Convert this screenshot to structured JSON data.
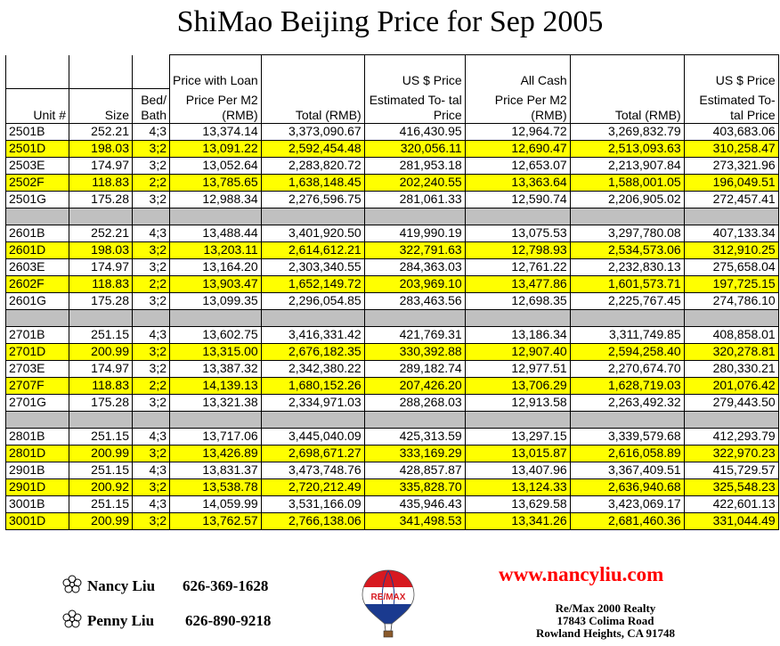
{
  "title": "ShiMao Beijing Price for Sep 2005",
  "header_top": {
    "loan": "Price with Loan",
    "usd1": "US $ Price",
    "cash": "All Cash",
    "usd2": "US $ Price"
  },
  "header": {
    "unit": "Unit #",
    "size": "Size",
    "bed": "Bed/ Bath",
    "ppm2": "Price Per M2 (RMB)",
    "total": "Total (RMB)",
    "est": "Estimated To- tal Price",
    "ppm2_cash": "Price Per M2 (RMB)",
    "total_cash": "Total (RMB)",
    "est_cash": "Estimated To- tal Price"
  },
  "rows": [
    {
      "unit": "2501B",
      "size": "252.21",
      "bed": "4;3",
      "ppm2": "13,374.14",
      "total": "3,373,090.67",
      "usd": "416,430.95",
      "cppm2": "12,964.72",
      "ctotal": "3,269,832.79",
      "cusd": "403,683.06",
      "hl": false
    },
    {
      "unit": "2501D",
      "size": "198.03",
      "bed": "3;2",
      "ppm2": "13,091.22",
      "total": "2,592,454.48",
      "usd": "320,056.11",
      "cppm2": "12,690.47",
      "ctotal": "2,513,093.63",
      "cusd": "310,258.47",
      "hl": true
    },
    {
      "unit": "2503E",
      "size": "174.97",
      "bed": "3;2",
      "ppm2": "13,052.64",
      "total": "2,283,820.72",
      "usd": "281,953.18",
      "cppm2": "12,653.07",
      "ctotal": "2,213,907.84",
      "cusd": "273,321.96",
      "hl": false
    },
    {
      "unit": "2502F",
      "size": "118.83",
      "bed": "2;2",
      "ppm2": "13,785.65",
      "total": "1,638,148.45",
      "usd": "202,240.55",
      "cppm2": "13,363.64",
      "ctotal": "1,588,001.05",
      "cusd": "196,049.51",
      "hl": true
    },
    {
      "unit": "2501G",
      "size": "175.28",
      "bed": "3;2",
      "ppm2": "12,988.34",
      "total": "2,276,596.75",
      "usd": "281,061.33",
      "cppm2": "12,590.74",
      "ctotal": "2,206,905.02",
      "cusd": "272,457.41",
      "hl": false
    },
    {
      "gap": true
    },
    {
      "unit": "2601B",
      "size": "252.21",
      "bed": "4;3",
      "ppm2": "13,488.44",
      "total": "3,401,920.50",
      "usd": "419,990.19",
      "cppm2": "13,075.53",
      "ctotal": "3,297,780.08",
      "cusd": "407,133.34",
      "hl": false
    },
    {
      "unit": "2601D",
      "size": "198.03",
      "bed": "3;2",
      "ppm2": "13,203.11",
      "total": "2,614,612.21",
      "usd": "322,791.63",
      "cppm2": "12,798.93",
      "ctotal": "2,534,573.06",
      "cusd": "312,910.25",
      "hl": true
    },
    {
      "unit": "2603E",
      "size": "174.97",
      "bed": "3;2",
      "ppm2": "13,164.20",
      "total": "2,303,340.55",
      "usd": "284,363.03",
      "cppm2": "12,761.22",
      "ctotal": "2,232,830.13",
      "cusd": "275,658.04",
      "hl": false
    },
    {
      "unit": "2602F",
      "size": "118.83",
      "bed": "2;2",
      "ppm2": "13,903.47",
      "total": "1,652,149.72",
      "usd": "203,969.10",
      "cppm2": "13,477.86",
      "ctotal": "1,601,573.71",
      "cusd": "197,725.15",
      "hl": true
    },
    {
      "unit": "2601G",
      "size": "175.28",
      "bed": "3;2",
      "ppm2": "13,099.35",
      "total": "2,296,054.85",
      "usd": "283,463.56",
      "cppm2": "12,698.35",
      "ctotal": "2,225,767.45",
      "cusd": "274,786.10",
      "hl": false
    },
    {
      "gap": true
    },
    {
      "unit": "2701B",
      "size": "251.15",
      "bed": "4;3",
      "ppm2": "13,602.75",
      "total": "3,416,331.42",
      "usd": "421,769.31",
      "cppm2": "13,186.34",
      "ctotal": "3,311,749.85",
      "cusd": "408,858.01",
      "hl": false
    },
    {
      "unit": "2701D",
      "size": "200.99",
      "bed": "3;2",
      "ppm2": "13,315.00",
      "total": "2,676,182.35",
      "usd": "330,392.88",
      "cppm2": "12,907.40",
      "ctotal": "2,594,258.40",
      "cusd": "320,278.81",
      "hl": true
    },
    {
      "unit": "2703E",
      "size": "174.97",
      "bed": "3;2",
      "ppm2": "13,387.32",
      "total": "2,342,380.22",
      "usd": "289,182.74",
      "cppm2": "12,977.51",
      "ctotal": "2,270,674.70",
      "cusd": "280,330.21",
      "hl": false
    },
    {
      "unit": "2707F",
      "size": "118.83",
      "bed": "2;2",
      "ppm2": "14,139.13",
      "total": "1,680,152.26",
      "usd": "207,426.20",
      "cppm2": "13,706.29",
      "ctotal": "1,628,719.03",
      "cusd": "201,076.42",
      "hl": true
    },
    {
      "unit": "2701G",
      "size": "175.28",
      "bed": "3;2",
      "ppm2": "13,321.38",
      "total": "2,334,971.03",
      "usd": "288,268.03",
      "cppm2": "12,913.58",
      "ctotal": "2,263,492.32",
      "cusd": "279,443.50",
      "hl": false
    },
    {
      "gap": true
    },
    {
      "unit": "2801B",
      "size": "251.15",
      "bed": "4;3",
      "ppm2": "13,717.06",
      "total": "3,445,040.09",
      "usd": "425,313.59",
      "cppm2": "13,297.15",
      "ctotal": "3,339,579.68",
      "cusd": "412,293.79",
      "hl": false
    },
    {
      "unit": "2801D",
      "size": "200.99",
      "bed": "3;2",
      "ppm2": "13,426.89",
      "total": "2,698,671.27",
      "usd": "333,169.29",
      "cppm2": "13,015.87",
      "ctotal": "2,616,058.89",
      "cusd": "322,970.23",
      "hl": true
    },
    {
      "unit": "2901B",
      "size": "251.15",
      "bed": "4;3",
      "ppm2": "13,831.37",
      "total": "3,473,748.76",
      "usd": "428,857.87",
      "cppm2": "13,407.96",
      "ctotal": "3,367,409.51",
      "cusd": "415,729.57",
      "hl": false
    },
    {
      "unit": "2901D",
      "size": "200.92",
      "bed": "3;2",
      "ppm2": "13,538.78",
      "total": "2,720,212.49",
      "usd": "335,828.70",
      "cppm2": "13,124.33",
      "ctotal": "2,636,940.68",
      "cusd": "325,548.23",
      "hl": true
    },
    {
      "unit": "3001B",
      "size": "251.15",
      "bed": "4;3",
      "ppm2": "14,059.99",
      "total": "3,531,166.09",
      "usd": "435,946.43",
      "cppm2": "13,629.58",
      "ctotal": "3,423,069.17",
      "cusd": "422,601.13",
      "hl": false
    },
    {
      "unit": "3001D",
      "size": "200.99",
      "bed": "3;2",
      "ppm2": "13,762.57",
      "total": "2,766,138.06",
      "usd": "341,498.53",
      "cppm2": "13,341.26",
      "ctotal": "2,681,460.36",
      "cusd": "331,044.49",
      "hl": true
    }
  ],
  "contacts": [
    {
      "name": "Nancy Liu",
      "phone": "626-369-1628"
    },
    {
      "name": "Penny Liu",
      "phone": "626-890-9218"
    }
  ],
  "website": "www.nancyliu.com",
  "realty": {
    "name": "Re/Max 2000 Realty",
    "street": "17843 Colima Road",
    "city": "Rowland Heights, CA 91748"
  },
  "logo_text": "RE/MAX",
  "colors": {
    "highlight": "#ffff00",
    "gap": "#c0c0c0",
    "website": "#ff0000"
  }
}
